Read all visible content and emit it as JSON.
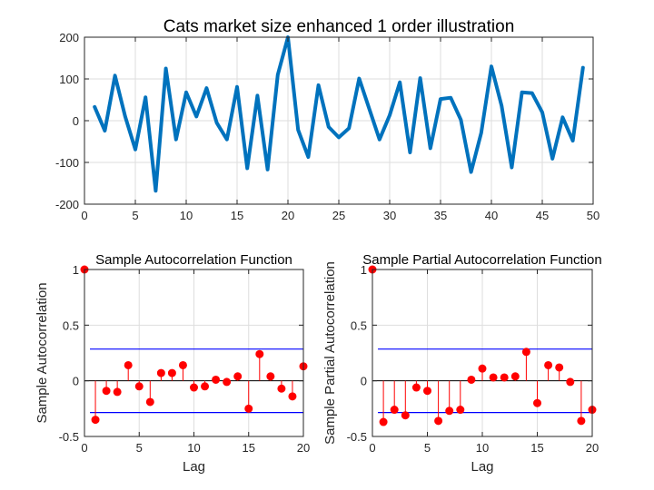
{
  "chart_data": [
    {
      "type": "line",
      "title": "Cats market size enhanced 1 order illustration",
      "xlabel": "",
      "ylabel": "",
      "xlim": [
        0,
        50
      ],
      "ylim": [
        -200,
        200
      ],
      "xticks": [
        "0",
        "5",
        "10",
        "15",
        "20",
        "25",
        "30",
        "35",
        "40",
        "45",
        "50"
      ],
      "yticks": [
        "-200",
        "-100",
        "0",
        "100",
        "200"
      ],
      "grid": true,
      "color": "#0072bd",
      "x": [
        1,
        2,
        3,
        4,
        5,
        6,
        7,
        8,
        9,
        10,
        11,
        12,
        13,
        14,
        15,
        16,
        17,
        18,
        19,
        20,
        21,
        22,
        23,
        24,
        25,
        26,
        27,
        28,
        29,
        30,
        31,
        32,
        33,
        34,
        35,
        36,
        37,
        38,
        39,
        40,
        41,
        42,
        43,
        44,
        45,
        46,
        47,
        48,
        49
      ],
      "values": [
        33,
        -24,
        108,
        10,
        -69,
        56,
        -168,
        125,
        -45,
        68,
        10,
        78,
        -5,
        -45,
        81,
        -114,
        60,
        -117,
        110,
        200,
        -22,
        -87,
        85,
        -15,
        -40,
        -18,
        101,
        28,
        -45,
        13,
        92,
        -76,
        102,
        -66,
        52,
        55,
        2,
        -123,
        -29,
        130,
        36,
        -112,
        68,
        66,
        20,
        -91,
        8,
        -48,
        127
      ]
    },
    {
      "type": "stem",
      "title": "Sample Autocorrelation Function",
      "xlabel": "Lag",
      "ylabel": "Sample Autocorrelation",
      "xlim": [
        0,
        20
      ],
      "ylim": [
        -0.5,
        1
      ],
      "xticks": [
        "0",
        "5",
        "10",
        "15",
        "20"
      ],
      "yticks": [
        "-0.5",
        "0",
        "0.5",
        "1"
      ],
      "grid": true,
      "bounds": [
        0.285,
        -0.285
      ],
      "stem_color": "#ff0000",
      "bound_color": "#0000ff",
      "x": [
        0,
        1,
        2,
        3,
        4,
        5,
        6,
        7,
        8,
        9,
        10,
        11,
        12,
        13,
        14,
        15,
        16,
        17,
        18,
        19,
        20
      ],
      "values": [
        1,
        -0.35,
        -0.09,
        -0.1,
        0.14,
        -0.05,
        -0.19,
        0.07,
        0.07,
        0.14,
        -0.06,
        -0.05,
        0.01,
        -0.01,
        0.04,
        -0.25,
        0.24,
        0.04,
        -0.07,
        -0.14,
        0.13
      ]
    },
    {
      "type": "stem",
      "title": "Sample Partial Autocorrelation Function",
      "xlabel": "Lag",
      "ylabel": "Sample Partial Autocorrelation",
      "xlim": [
        0,
        20
      ],
      "ylim": [
        -0.5,
        1
      ],
      "xticks": [
        "0",
        "5",
        "10",
        "15",
        "20"
      ],
      "yticks": [
        "-0.5",
        "0",
        "0.5",
        "1"
      ],
      "grid": true,
      "bounds": [
        0.285,
        -0.285
      ],
      "stem_color": "#ff0000",
      "bound_color": "#0000ff",
      "x": [
        0,
        1,
        2,
        3,
        4,
        5,
        6,
        7,
        8,
        9,
        10,
        11,
        12,
        13,
        14,
        15,
        16,
        17,
        18,
        19,
        20
      ],
      "values": [
        1,
        -0.37,
        -0.26,
        -0.31,
        -0.06,
        -0.09,
        -0.36,
        -0.27,
        -0.26,
        0.01,
        0.11,
        0.03,
        0.03,
        0.04,
        0.26,
        -0.2,
        0.14,
        0.12,
        -0.01,
        -0.36,
        -0.26
      ]
    }
  ]
}
